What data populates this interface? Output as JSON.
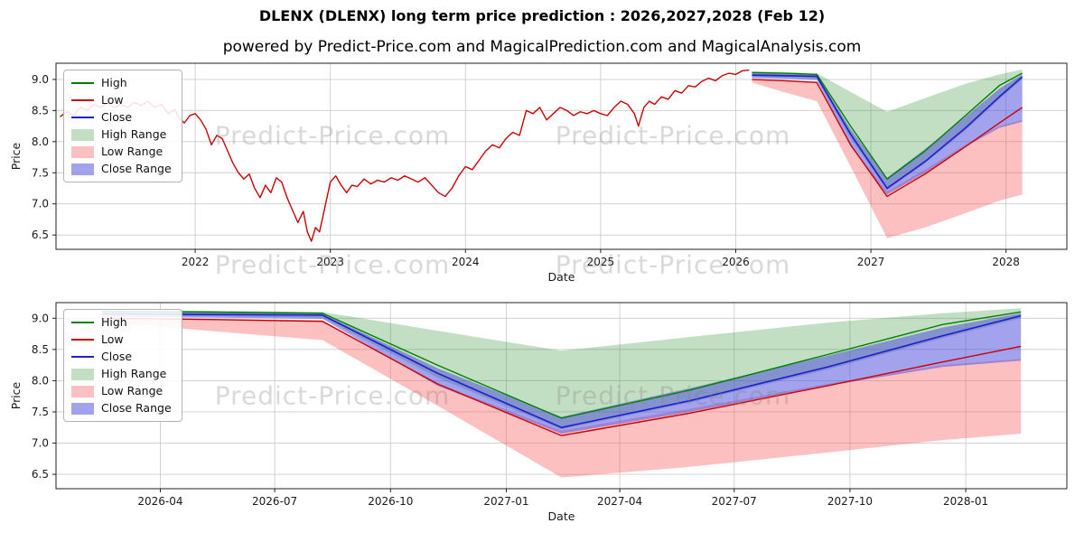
{
  "header": {
    "title": "DLENX (DLENX) long term price prediction : 2026,2027,2028 (Feb 12)",
    "subtitle": "powered by Predict-Price.com and MagicalPrediction.com and MagicalAnalysis.com"
  },
  "watermark": {
    "text": "Predict-Price.com"
  },
  "colors": {
    "high_line": "#008000",
    "low_line": "#cc0000",
    "close_line": "#2222cc",
    "high_fill": "rgba(40,140,40,0.28)",
    "low_fill": "rgba(250,90,90,0.38)",
    "close_fill": "rgba(70,70,220,0.5)",
    "grid": "#cccccc",
    "frame": "#222222"
  },
  "legend": {
    "entries": [
      {
        "label": "High",
        "swatch": "line",
        "color": "#008000"
      },
      {
        "label": "Low",
        "swatch": "line",
        "color": "#cc0000"
      },
      {
        "label": "Close",
        "swatch": "line",
        "color": "#2222cc"
      },
      {
        "label": "High Range",
        "swatch": "patch",
        "color": "rgba(40,140,40,0.28)"
      },
      {
        "label": "Low Range",
        "swatch": "patch",
        "color": "rgba(250,90,90,0.38)"
      },
      {
        "label": "Close Range",
        "swatch": "patch",
        "color": "rgba(70,70,220,0.5)"
      }
    ]
  },
  "chart_data": [
    {
      "type": "line",
      "title": "",
      "xlabel": "Date",
      "ylabel": "Price",
      "xlim": [
        2020.97,
        2028.45
      ],
      "ylim": [
        6.27,
        9.26
      ],
      "grid": true,
      "legend_position": "upper-left",
      "x_ticks": [
        {
          "v": 2022,
          "label": "2022"
        },
        {
          "v": 2023,
          "label": "2023"
        },
        {
          "v": 2024,
          "label": "2024"
        },
        {
          "v": 2025,
          "label": "2025"
        },
        {
          "v": 2026,
          "label": "2026"
        },
        {
          "v": 2027,
          "label": "2027"
        },
        {
          "v": 2028,
          "label": "2028"
        }
      ],
      "y_ticks": [
        {
          "v": 6.5,
          "label": "6.5"
        },
        {
          "v": 7.0,
          "label": "7.0"
        },
        {
          "v": 7.5,
          "label": "7.5"
        },
        {
          "v": 8.0,
          "label": "8.0"
        },
        {
          "v": 8.5,
          "label": "8.5"
        },
        {
          "v": 9.0,
          "label": "9.0"
        }
      ],
      "bands": [
        {
          "name": "high-range-band",
          "color": "rgba(40,140,40,0.28)",
          "x": [
            2026.12,
            2026.35,
            2026.6,
            2026.85,
            2027.12,
            2027.4,
            2027.7,
            2027.95,
            2028.12
          ],
          "top": [
            9.13,
            9.12,
            9.1,
            8.8,
            8.48,
            8.7,
            8.93,
            9.08,
            9.16
          ],
          "bottom": [
            9.04,
            9.03,
            9.01,
            8.05,
            7.22,
            7.65,
            8.18,
            8.68,
            9.0
          ]
        },
        {
          "name": "low-range-band",
          "color": "rgba(250,90,90,0.38)",
          "x": [
            2026.12,
            2026.35,
            2026.6,
            2026.85,
            2027.12,
            2027.4,
            2027.7,
            2027.95,
            2028.12
          ],
          "top": [
            9.0,
            8.99,
            8.97,
            7.95,
            7.2,
            7.55,
            7.95,
            8.25,
            8.35
          ],
          "bottom": [
            8.95,
            8.8,
            8.65,
            7.6,
            6.45,
            6.62,
            6.85,
            7.05,
            7.15
          ]
        },
        {
          "name": "close-range-band",
          "color": "rgba(70,70,220,0.5)",
          "x": [
            2026.12,
            2026.35,
            2026.6,
            2026.85,
            2027.12,
            2027.4,
            2027.7,
            2027.95,
            2028.12
          ],
          "top": [
            9.1,
            9.09,
            9.07,
            8.2,
            7.42,
            7.88,
            8.4,
            8.85,
            9.08
          ],
          "bottom": [
            9.02,
            9.01,
            8.99,
            7.92,
            7.15,
            7.5,
            7.92,
            8.22,
            8.32
          ]
        }
      ],
      "series": [
        {
          "name": "history-price-line",
          "color": "#cc0000",
          "width": 1.4,
          "x": [
            2021.0,
            2021.05,
            2021.1,
            2021.15,
            2021.2,
            2021.25,
            2021.3,
            2021.35,
            2021.4,
            2021.45,
            2021.5,
            2021.55,
            2021.6,
            2021.65,
            2021.7,
            2021.75,
            2021.8,
            2021.85,
            2021.88,
            2021.92,
            2021.96,
            2022.0,
            2022.04,
            2022.08,
            2022.12,
            2022.16,
            2022.2,
            2022.24,
            2022.28,
            2022.32,
            2022.36,
            2022.4,
            2022.44,
            2022.48,
            2022.52,
            2022.56,
            2022.6,
            2022.64,
            2022.68,
            2022.72,
            2022.76,
            2022.8,
            2022.83,
            2022.86,
            2022.89,
            2022.92,
            2022.95,
            2023.0,
            2023.04,
            2023.08,
            2023.12,
            2023.16,
            2023.2,
            2023.25,
            2023.3,
            2023.35,
            2023.4,
            2023.45,
            2023.5,
            2023.55,
            2023.6,
            2023.65,
            2023.7,
            2023.75,
            2023.8,
            2023.85,
            2023.9,
            2023.95,
            2024.0,
            2024.05,
            2024.1,
            2024.15,
            2024.2,
            2024.25,
            2024.3,
            2024.35,
            2024.4,
            2024.45,
            2024.5,
            2024.55,
            2024.6,
            2024.65,
            2024.7,
            2024.75,
            2024.8,
            2024.85,
            2024.9,
            2024.95,
            2025.0,
            2025.05,
            2025.1,
            2025.15,
            2025.2,
            2025.25,
            2025.28,
            2025.32,
            2025.36,
            2025.4,
            2025.45,
            2025.5,
            2025.55,
            2025.6,
            2025.65,
            2025.7,
            2025.75,
            2025.8,
            2025.85,
            2025.9,
            2025.95,
            2026.0,
            2026.05,
            2026.1
          ],
          "y": [
            8.4,
            8.48,
            8.42,
            8.55,
            8.5,
            8.6,
            8.55,
            8.62,
            8.55,
            8.6,
            8.55,
            8.63,
            8.58,
            8.65,
            8.55,
            8.6,
            8.45,
            8.52,
            8.38,
            8.3,
            8.42,
            8.45,
            8.35,
            8.2,
            7.95,
            8.1,
            8.05,
            7.85,
            7.65,
            7.5,
            7.4,
            7.48,
            7.25,
            7.1,
            7.3,
            7.18,
            7.42,
            7.35,
            7.1,
            6.9,
            6.7,
            6.88,
            6.55,
            6.4,
            6.62,
            6.55,
            6.85,
            7.35,
            7.45,
            7.3,
            7.18,
            7.3,
            7.28,
            7.4,
            7.32,
            7.38,
            7.35,
            7.42,
            7.38,
            7.45,
            7.4,
            7.35,
            7.42,
            7.3,
            7.18,
            7.12,
            7.25,
            7.45,
            7.6,
            7.55,
            7.7,
            7.85,
            7.95,
            7.9,
            8.05,
            8.15,
            8.1,
            8.5,
            8.45,
            8.55,
            8.35,
            8.45,
            8.55,
            8.5,
            8.42,
            8.48,
            8.45,
            8.5,
            8.45,
            8.42,
            8.55,
            8.65,
            8.6,
            8.45,
            8.25,
            8.55,
            8.65,
            8.6,
            8.72,
            8.68,
            8.82,
            8.78,
            8.9,
            8.88,
            8.97,
            9.02,
            8.98,
            9.06,
            9.1,
            9.08,
            9.14,
            9.15
          ]
        },
        {
          "name": "high-line",
          "color": "#008000",
          "width": 1.4,
          "x": [
            2026.12,
            2026.35,
            2026.6,
            2026.85,
            2027.12,
            2027.4,
            2027.7,
            2027.95,
            2028.12
          ],
          "y": [
            9.11,
            9.1,
            9.08,
            8.25,
            7.4,
            7.85,
            8.42,
            8.9,
            9.1
          ]
        },
        {
          "name": "low-line",
          "color": "#cc0000",
          "width": 1.4,
          "x": [
            2026.12,
            2026.35,
            2026.6,
            2026.85,
            2027.12,
            2027.4,
            2027.7,
            2027.95,
            2028.12
          ],
          "y": [
            9.0,
            8.98,
            8.95,
            7.95,
            7.12,
            7.48,
            7.92,
            8.3,
            8.55
          ]
        },
        {
          "name": "close-line",
          "color": "#2222cc",
          "width": 1.7,
          "x": [
            2026.12,
            2026.35,
            2026.6,
            2026.85,
            2027.12,
            2027.4,
            2027.7,
            2027.95,
            2028.12
          ],
          "y": [
            9.07,
            9.06,
            9.05,
            8.12,
            7.25,
            7.68,
            8.22,
            8.72,
            9.04
          ]
        }
      ]
    },
    {
      "type": "line",
      "title": "",
      "xlabel": "Date",
      "ylabel": "Price",
      "xlim": [
        2026.02,
        2028.22
      ],
      "ylim": [
        6.27,
        9.25
      ],
      "grid": true,
      "legend_position": "upper-left",
      "x_ticks": [
        {
          "v": 2026.247,
          "label": "2026-04"
        },
        {
          "v": 2026.496,
          "label": "2026-07"
        },
        {
          "v": 2026.748,
          "label": "2026-10"
        },
        {
          "v": 2027.0,
          "label": "2027-01"
        },
        {
          "v": 2027.247,
          "label": "2027-04"
        },
        {
          "v": 2027.496,
          "label": "2027-07"
        },
        {
          "v": 2027.748,
          "label": "2027-10"
        },
        {
          "v": 2028.0,
          "label": "2028-01"
        }
      ],
      "y_ticks": [
        {
          "v": 6.5,
          "label": "6.5"
        },
        {
          "v": 7.0,
          "label": "7.0"
        },
        {
          "v": 7.5,
          "label": "7.5"
        },
        {
          "v": 8.0,
          "label": "8.0"
        },
        {
          "v": 8.5,
          "label": "8.5"
        },
        {
          "v": 9.0,
          "label": "9.0"
        }
      ],
      "bands": [
        {
          "name": "high-range-band",
          "color": "rgba(40,140,40,0.28)",
          "x": [
            2026.12,
            2026.35,
            2026.6,
            2026.85,
            2027.12,
            2027.4,
            2027.7,
            2027.95,
            2028.12
          ],
          "top": [
            9.13,
            9.12,
            9.1,
            8.8,
            8.48,
            8.7,
            8.93,
            9.08,
            9.16
          ],
          "bottom": [
            9.04,
            9.03,
            9.01,
            8.05,
            7.22,
            7.65,
            8.18,
            8.68,
            9.0
          ]
        },
        {
          "name": "low-range-band",
          "color": "rgba(250,90,90,0.38)",
          "x": [
            2026.12,
            2026.35,
            2026.6,
            2026.85,
            2027.12,
            2027.4,
            2027.7,
            2027.95,
            2028.12
          ],
          "top": [
            9.0,
            8.99,
            8.97,
            7.95,
            7.2,
            7.55,
            7.95,
            8.25,
            8.35
          ],
          "bottom": [
            8.95,
            8.8,
            8.65,
            7.6,
            6.45,
            6.62,
            6.85,
            7.05,
            7.15
          ]
        },
        {
          "name": "close-range-band",
          "color": "rgba(70,70,220,0.5)",
          "x": [
            2026.12,
            2026.35,
            2026.6,
            2026.85,
            2027.12,
            2027.4,
            2027.7,
            2027.95,
            2028.12
          ],
          "top": [
            9.1,
            9.09,
            9.07,
            8.2,
            7.42,
            7.88,
            8.4,
            8.85,
            9.08
          ],
          "bottom": [
            9.02,
            9.01,
            8.99,
            7.92,
            7.15,
            7.5,
            7.92,
            8.22,
            8.32
          ]
        }
      ],
      "series": [
        {
          "name": "high-line",
          "color": "#008000",
          "width": 1.4,
          "x": [
            2026.12,
            2026.35,
            2026.6,
            2026.85,
            2027.12,
            2027.4,
            2027.7,
            2027.95,
            2028.12
          ],
          "y": [
            9.11,
            9.1,
            9.08,
            8.25,
            7.4,
            7.85,
            8.42,
            8.9,
            9.1
          ]
        },
        {
          "name": "low-line",
          "color": "#cc0000",
          "width": 1.4,
          "x": [
            2026.12,
            2026.35,
            2026.6,
            2026.85,
            2027.12,
            2027.4,
            2027.7,
            2027.95,
            2028.12
          ],
          "y": [
            9.0,
            8.98,
            8.95,
            7.95,
            7.12,
            7.48,
            7.92,
            8.3,
            8.55
          ]
        },
        {
          "name": "close-line",
          "color": "#2222cc",
          "width": 1.7,
          "x": [
            2026.12,
            2026.35,
            2026.6,
            2026.85,
            2027.12,
            2027.4,
            2027.7,
            2027.95,
            2028.12
          ],
          "y": [
            9.07,
            9.06,
            9.05,
            8.12,
            7.25,
            7.68,
            8.22,
            8.72,
            9.04
          ]
        }
      ]
    }
  ]
}
